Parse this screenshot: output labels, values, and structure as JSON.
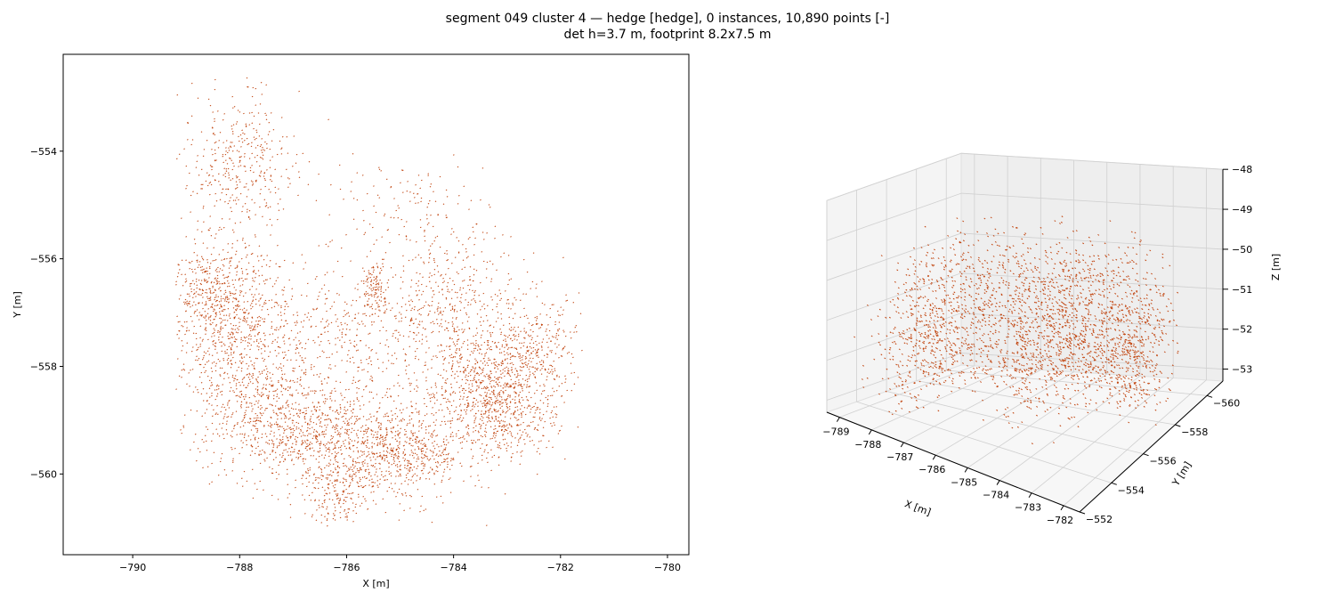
{
  "figure": {
    "title_line1": "segment 049 cluster 4 — hedge [hedge], 0 instances, 10,890 points [-]",
    "title_line2": "det h=3.7 m, footprint 8.2x7.5 m"
  },
  "colors": {
    "points": "#c1440e",
    "axis": "#000000",
    "pane": "#f2f2f2",
    "grid": "#d0d0d0"
  },
  "chart_data": [
    {
      "type": "scatter",
      "view": "top-down",
      "xlabel": "X [m]",
      "ylabel": "Y [m]",
      "xlim": [
        -791.3,
        -779.6
      ],
      "ylim": [
        -561.5,
        -552.2
      ],
      "xticks": [
        -790,
        -788,
        -786,
        -784,
        -782,
        -780
      ],
      "yticks": [
        -554,
        -556,
        -558,
        -560
      ],
      "xtick_labels": [
        "−790",
        "−788",
        "−786",
        "−784",
        "−782",
        "−780"
      ],
      "ytick_labels": [
        "−554",
        "−556",
        "−558",
        "−560"
      ],
      "grid": false,
      "point_count": 10890,
      "clusters": [
        {
          "cx": -788.0,
          "cy": -554.2,
          "sx": 0.5,
          "sy": 0.65,
          "n": 380
        },
        {
          "cx": -788.5,
          "cy": -556.6,
          "sx": 0.45,
          "sy": 0.5,
          "n": 420
        },
        {
          "cx": -788.0,
          "cy": -557.6,
          "sx": 0.6,
          "sy": 0.7,
          "n": 650
        },
        {
          "cx": -787.3,
          "cy": -559.1,
          "sx": 0.75,
          "sy": 0.5,
          "n": 560
        },
        {
          "cx": -786.0,
          "cy": -559.5,
          "sx": 0.7,
          "sy": 0.55,
          "n": 640
        },
        {
          "cx": -786.0,
          "cy": -557.5,
          "sx": 0.8,
          "sy": 0.7,
          "n": 380
        },
        {
          "cx": -785.5,
          "cy": -556.5,
          "sx": 0.12,
          "sy": 0.25,
          "n": 110
        },
        {
          "cx": -784.8,
          "cy": -559.6,
          "sx": 0.55,
          "sy": 0.45,
          "n": 450
        },
        {
          "cx": -784.0,
          "cy": -556.8,
          "sx": 0.6,
          "sy": 0.65,
          "n": 400
        },
        {
          "cx": -783.4,
          "cy": -558.4,
          "sx": 0.6,
          "sy": 0.55,
          "n": 700
        },
        {
          "cx": -782.5,
          "cy": -557.8,
          "sx": 0.45,
          "sy": 0.55,
          "n": 340
        },
        {
          "cx": -783.0,
          "cy": -559.0,
          "sx": 0.45,
          "sy": 0.35,
          "n": 220
        },
        {
          "cx": -786.2,
          "cy": -560.5,
          "sx": 0.3,
          "sy": 0.25,
          "n": 120
        },
        {
          "cx": -785.0,
          "cy": -555.0,
          "sx": 0.8,
          "sy": 0.4,
          "n": 120
        }
      ]
    },
    {
      "type": "scatter",
      "view": "3d",
      "xlabel": "X [m]",
      "ylabel": "Y [m]",
      "zlabel": "Z [m]",
      "xlim": [
        -789.4,
        -781.5
      ],
      "ylim": [
        -561.0,
        -552.0
      ],
      "zlim": [
        -53.3,
        -48.0
      ],
      "xticks": [
        -789,
        -788,
        -787,
        -786,
        -785,
        -784,
        -783,
        -782
      ],
      "yticks": [
        -552,
        -554,
        -556,
        -558,
        -560
      ],
      "zticks": [
        -48,
        -49,
        -50,
        -51,
        -52,
        -53
      ],
      "xtick_labels": [
        "−789",
        "−788",
        "−787",
        "−786",
        "−785",
        "−784",
        "−783",
        "−782"
      ],
      "ytick_labels": [
        "−552",
        "−554",
        "−556",
        "−558",
        "−560"
      ],
      "ztick_labels": [
        "−48",
        "−49",
        "−50",
        "−51",
        "−52",
        "−53"
      ],
      "grid": true,
      "z_range": [
        -53.0,
        -49.0
      ]
    }
  ]
}
